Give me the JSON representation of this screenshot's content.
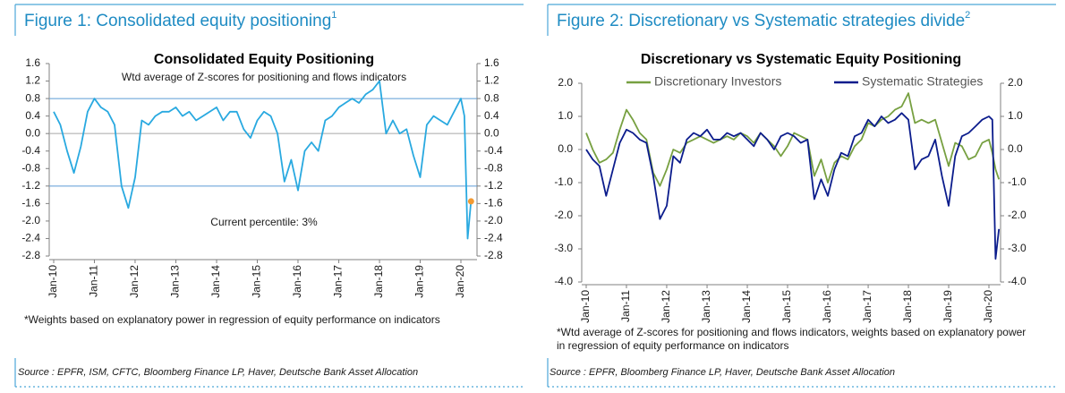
{
  "chart_data": [
    {
      "type": "line",
      "figure_title": "Figure 1: Consolidated equity positioning",
      "figure_title_note": "1",
      "title": "Consolidated Equity Positioning",
      "subtitle": "Wtd average of Z-scores for positioning and flows indicators",
      "annotation": "Current percentile: 3%",
      "footnote": [
        "*Weights based on explanatory power in regression of equity performance on indicators"
      ],
      "source": "Source : EPFR, ISM, CFTC, Bloomberg Finance LP, Haver, Deutsche Bank Asset Allocation",
      "x": [
        "Jan-10",
        "Mar-10",
        "May-10",
        "Jul-10",
        "Sep-10",
        "Nov-10",
        "Jan-11",
        "Mar-11",
        "May-11",
        "Jul-11",
        "Sep-11",
        "Nov-11",
        "Jan-12",
        "Mar-12",
        "May-12",
        "Jul-12",
        "Sep-12",
        "Nov-12",
        "Jan-13",
        "Mar-13",
        "May-13",
        "Jul-13",
        "Sep-13",
        "Nov-13",
        "Jan-14",
        "Mar-14",
        "May-14",
        "Jul-14",
        "Sep-14",
        "Nov-14",
        "Jan-15",
        "Mar-15",
        "May-15",
        "Jul-15",
        "Sep-15",
        "Nov-15",
        "Jan-16",
        "Mar-16",
        "May-16",
        "Jul-16",
        "Sep-16",
        "Nov-16",
        "Jan-17",
        "Mar-17",
        "May-17",
        "Jul-17",
        "Sep-17",
        "Nov-17",
        "Jan-18",
        "Mar-18",
        "May-18",
        "Jul-18",
        "Sep-18",
        "Nov-18",
        "Jan-19",
        "Mar-19",
        "May-19",
        "Jul-19",
        "Sep-19",
        "Nov-19",
        "Jan-20",
        "Feb-20",
        "Mar-20",
        "Apr-20"
      ],
      "values": [
        0.5,
        0.2,
        -0.4,
        -0.9,
        -0.3,
        0.5,
        0.8,
        0.6,
        0.5,
        0.2,
        -1.2,
        -1.7,
        -1.0,
        0.3,
        0.2,
        0.4,
        0.5,
        0.5,
        0.6,
        0.4,
        0.5,
        0.3,
        0.4,
        0.5,
        0.6,
        0.3,
        0.5,
        0.5,
        0.1,
        -0.1,
        0.3,
        0.5,
        0.4,
        0.0,
        -1.1,
        -0.6,
        -1.3,
        -0.4,
        -0.2,
        -0.4,
        0.3,
        0.4,
        0.6,
        0.7,
        0.8,
        0.7,
        0.9,
        1.0,
        1.2,
        0.0,
        0.3,
        0.0,
        0.1,
        -0.5,
        -1.0,
        0.2,
        0.4,
        0.3,
        0.2,
        0.5,
        0.8,
        0.4,
        -2.4,
        -1.55
      ],
      "color": "#29a9e0",
      "marker_color": "#f39a32",
      "xticks": [
        "Jan-10",
        "Jan-11",
        "Jan-12",
        "Jan-13",
        "Jan-14",
        "Jan-15",
        "Jan-16",
        "Jan-17",
        "Jan-18",
        "Jan-19",
        "Jan-20"
      ],
      "ylim": [
        -2.8,
        1.6
      ],
      "yticks": [
        1.6,
        1.2,
        0.8,
        0.4,
        {
          "value": 0,
          "label": "0.0"
        },
        -0.4,
        -0.8,
        -1.2,
        -1.6,
        {
          "value": -2,
          "label": "-2.0"
        },
        -2.4,
        -2.8
      ],
      "ref_lines": [
        {
          "value": 0.8,
          "color": "#5b9bd5"
        },
        {
          "value": 0,
          "color": "#a6a6a6"
        },
        {
          "value": -1.2,
          "color": "#5b9bd5"
        }
      ]
    },
    {
      "type": "line",
      "figure_title": "Figure 2: Discretionary vs Systematic strategies divide",
      "figure_title_note": "2",
      "title": "Discretionary  vs Systematic Equity Positioning",
      "footnote": [
        "*Wtd average of Z-scores for positioning and flows indicators, weights based on explanatory power",
        "in regression of equity performance on indicators"
      ],
      "source": "Source : EPFR, Bloomberg Finance LP, Haver, Deutsche Bank Asset Allocation",
      "legend": "top",
      "x": [
        "Jan-10",
        "Mar-10",
        "May-10",
        "Jul-10",
        "Sep-10",
        "Nov-10",
        "Jan-11",
        "Mar-11",
        "May-11",
        "Jul-11",
        "Sep-11",
        "Nov-11",
        "Jan-12",
        "Mar-12",
        "May-12",
        "Jul-12",
        "Sep-12",
        "Nov-12",
        "Jan-13",
        "Mar-13",
        "May-13",
        "Jul-13",
        "Sep-13",
        "Nov-13",
        "Jan-14",
        "Mar-14",
        "May-14",
        "Jul-14",
        "Sep-14",
        "Nov-14",
        "Jan-15",
        "Mar-15",
        "May-15",
        "Jul-15",
        "Sep-15",
        "Nov-15",
        "Jan-16",
        "Mar-16",
        "May-16",
        "Jul-16",
        "Sep-16",
        "Nov-16",
        "Jan-17",
        "Mar-17",
        "May-17",
        "Jul-17",
        "Sep-17",
        "Nov-17",
        "Jan-18",
        "Mar-18",
        "May-18",
        "Jul-18",
        "Sep-18",
        "Nov-18",
        "Jan-19",
        "Mar-19",
        "May-19",
        "Jul-19",
        "Sep-19",
        "Nov-19",
        "Jan-20",
        "Feb-20",
        "Mar-20",
        "Apr-20"
      ],
      "series": [
        {
          "name": "Discretionary Investors",
          "color": "#77a041",
          "values": [
            0.5,
            0.0,
            -0.4,
            -0.3,
            -0.1,
            0.6,
            1.2,
            0.9,
            0.5,
            0.3,
            -0.7,
            -1.1,
            -0.6,
            0.0,
            -0.1,
            0.2,
            0.3,
            0.4,
            0.3,
            0.2,
            0.3,
            0.4,
            0.3,
            0.5,
            0.4,
            0.2,
            0.5,
            0.3,
            0.1,
            -0.2,
            0.1,
            0.5,
            0.4,
            0.3,
            -0.8,
            -0.3,
            -1.0,
            -0.4,
            -0.2,
            -0.3,
            0.1,
            0.3,
            0.8,
            0.7,
            0.9,
            1.0,
            1.2,
            1.3,
            1.7,
            0.8,
            0.9,
            0.8,
            0.9,
            0.2,
            -0.5,
            0.2,
            0.1,
            -0.3,
            -0.2,
            0.2,
            0.3,
            -0.1,
            -0.6,
            -0.9
          ]
        },
        {
          "name": "Systematic Strategies",
          "color": "#0b1c8c",
          "values": [
            0.0,
            -0.3,
            -0.5,
            -1.4,
            -0.6,
            0.2,
            0.6,
            0.5,
            0.3,
            0.2,
            -0.8,
            -2.1,
            -1.7,
            -0.2,
            -0.4,
            0.3,
            0.5,
            0.4,
            0.6,
            0.3,
            0.3,
            0.5,
            0.4,
            0.5,
            0.3,
            0.1,
            0.5,
            0.3,
            0.0,
            0.4,
            0.5,
            0.4,
            0.2,
            0.3,
            -1.5,
            -0.9,
            -1.4,
            -0.6,
            -0.1,
            -0.2,
            0.4,
            0.5,
            0.9,
            0.7,
            1.0,
            0.8,
            0.9,
            1.1,
            0.9,
            -0.6,
            -0.3,
            -0.2,
            0.3,
            -0.8,
            -1.7,
            -0.2,
            0.4,
            0.5,
            0.7,
            0.9,
            1.0,
            0.9,
            -3.3,
            -2.4
          ]
        }
      ],
      "xticks": [
        "Jan-10",
        "Jan-11",
        "Jan-12",
        "Jan-13",
        "Jan-14",
        "Jan-15",
        "Jan-16",
        "Jan-17",
        "Jan-18",
        "Jan-19",
        "Jan-20"
      ],
      "ylim": [
        -4,
        2
      ],
      "yticks": [
        {
          "value": 2,
          "label": "2.0"
        },
        {
          "value": 1,
          "label": "1.0"
        },
        {
          "value": 0,
          "label": "0.0"
        },
        {
          "value": -1,
          "label": "-1.0"
        },
        {
          "value": -2,
          "label": "-2.0"
        },
        {
          "value": -3,
          "label": "-3.0"
        },
        {
          "value": -4,
          "label": "-4.0"
        }
      ]
    }
  ]
}
